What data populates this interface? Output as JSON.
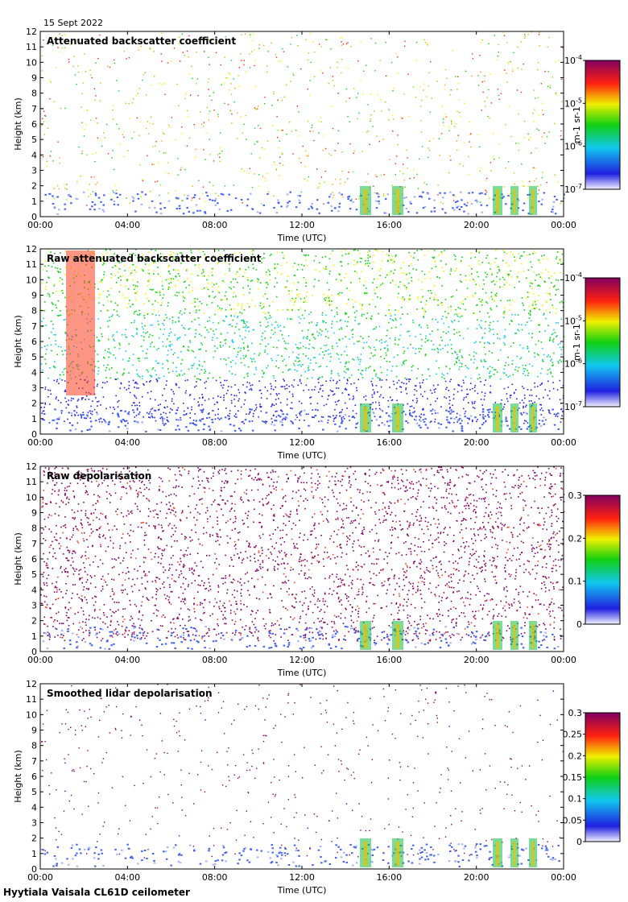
{
  "date": "15 Sept 2022",
  "footer": "Hyytiala Vaisala CL61D ceilometer",
  "chart_data": [
    {
      "type": "heatmap",
      "title": "Attenuated backscatter coefficient",
      "xlabel": "Time (UTC)",
      "ylabel": "Height (km)",
      "xticks": [
        "00:00",
        "04:00",
        "08:00",
        "12:00",
        "16:00",
        "20:00",
        "00:00"
      ],
      "yticks": [
        "0",
        "1",
        "2",
        "3",
        "4",
        "5",
        "6",
        "7",
        "8",
        "9",
        "10",
        "11",
        "12"
      ],
      "ylim": [
        0,
        12
      ],
      "colorbar": {
        "scale": "log",
        "range": [
          1e-07,
          0.0001
        ],
        "unit": "m-1 sr-1",
        "ticks": [
          {
            "base": "10",
            "exp": "-4"
          },
          {
            "base": "10",
            "exp": "-5"
          },
          {
            "base": "10",
            "exp": "-6"
          },
          {
            "base": "10",
            "exp": "-7"
          }
        ]
      }
    },
    {
      "type": "heatmap",
      "title": "Raw attenuated backscatter coefficient",
      "xlabel": "Time (UTC)",
      "ylabel": "Height (km)",
      "xticks": [
        "00:00",
        "04:00",
        "08:00",
        "12:00",
        "16:00",
        "20:00",
        "00:00"
      ],
      "yticks": [
        "0",
        "1",
        "2",
        "3",
        "4",
        "5",
        "6",
        "7",
        "8",
        "9",
        "10",
        "11",
        "12"
      ],
      "ylim": [
        0,
        12
      ],
      "colorbar": {
        "scale": "log",
        "range": [
          1e-07,
          0.0001
        ],
        "unit": "m-1 sr-1",
        "ticks": [
          {
            "base": "10",
            "exp": "-4"
          },
          {
            "base": "10",
            "exp": "-5"
          },
          {
            "base": "10",
            "exp": "-6"
          },
          {
            "base": "10",
            "exp": "-7"
          }
        ]
      }
    },
    {
      "type": "heatmap",
      "title": "Raw depolarisation",
      "xlabel": "Time (UTC)",
      "ylabel": "Height (km)",
      "xticks": [
        "00:00",
        "04:00",
        "08:00",
        "12:00",
        "16:00",
        "20:00",
        "00:00"
      ],
      "yticks": [
        "0",
        "1",
        "2",
        "3",
        "4",
        "5",
        "6",
        "7",
        "8",
        "9",
        "10",
        "11",
        "12"
      ],
      "ylim": [
        0,
        12
      ],
      "colorbar": {
        "scale": "linear",
        "range": [
          0,
          0.3
        ],
        "ticks": [
          "0.3",
          "0.2",
          "0.1",
          "0"
        ]
      }
    },
    {
      "type": "heatmap",
      "title": "Smoothed lidar depolarisation",
      "xlabel": "Time (UTC)",
      "ylabel": "Height (km)",
      "xticks": [
        "00:00",
        "04:00",
        "08:00",
        "12:00",
        "16:00",
        "20:00",
        "00:00"
      ],
      "yticks": [
        "0",
        "1",
        "2",
        "3",
        "4",
        "5",
        "6",
        "7",
        "8",
        "9",
        "10",
        "11",
        "12"
      ],
      "ylim": [
        0,
        12
      ],
      "colorbar": {
        "scale": "linear",
        "range": [
          0,
          0.3
        ],
        "ticks": [
          "0.3",
          "0.25",
          "0.2",
          "0.15",
          "0.1",
          "0.05",
          "0"
        ]
      }
    }
  ]
}
